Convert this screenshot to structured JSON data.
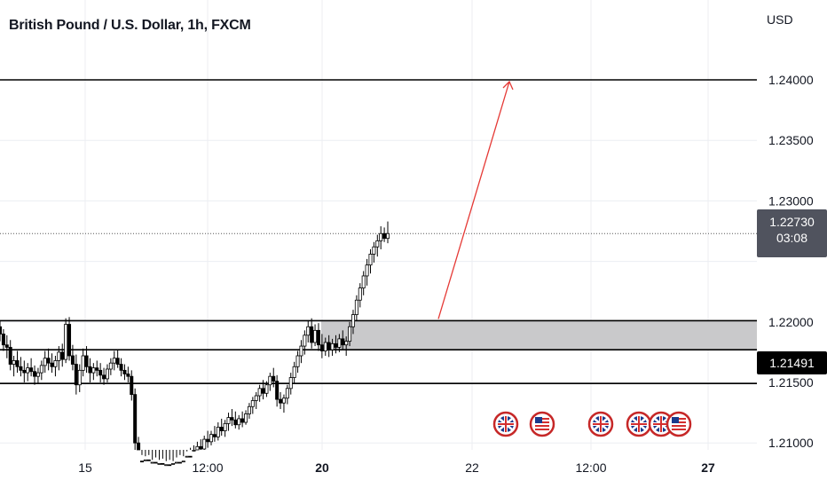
{
  "header": {
    "symbol_title": "British Pound / U.S. Dollar, 1h, FXCM",
    "currency": "USD"
  },
  "price_tags": {
    "current_price": "1.22730",
    "countdown": "03:08",
    "level_price": "1.21491"
  },
  "colors": {
    "up_candle": "#ffffff",
    "candle_outline": "#000000",
    "zone_fill": "#c9c9cb",
    "arrow": "#e53935",
    "grid": "#eceef2"
  },
  "chart_data": {
    "type": "candlestick",
    "title": "British Pound / U.S. Dollar, 1h, FXCM",
    "ylabel": "USD",
    "ylim": [
      1.2078,
      1.24437
    ],
    "y_ticks": [
      "1.21000",
      "1.21500",
      "1.22000",
      "1.23000",
      "1.23500",
      "1.24000"
    ],
    "x_ticks": [
      "15",
      "12:00",
      "20",
      "22",
      "12:00",
      "27"
    ],
    "grid": true,
    "last_price": 1.2273,
    "horizontal_levels": [
      1.24,
      1.2201,
      1.2177,
      1.21491
    ],
    "zone": {
      "from": 1.2177,
      "to": 1.2201,
      "start": "20"
    },
    "projection_arrow": {
      "from_price": 1.2201,
      "to_price": 1.24
    },
    "candles_ohlc": [
      [
        1.2196,
        1.2201,
        1.2184,
        1.219
      ],
      [
        1.219,
        1.2194,
        1.2176,
        1.2181
      ],
      [
        1.2181,
        1.2189,
        1.217,
        1.2179
      ],
      [
        1.2179,
        1.2185,
        1.216,
        1.2165
      ],
      [
        1.2165,
        1.2172,
        1.2155,
        1.2168
      ],
      [
        1.2168,
        1.2176,
        1.2158,
        1.2163
      ],
      [
        1.2163,
        1.2171,
        1.2155,
        1.216
      ],
      [
        1.216,
        1.2168,
        1.215,
        1.2158
      ],
      [
        1.2158,
        1.2166,
        1.2151,
        1.2162
      ],
      [
        1.2162,
        1.217,
        1.2155,
        1.2159
      ],
      [
        1.2159,
        1.2164,
        1.2148,
        1.2155
      ],
      [
        1.2155,
        1.2162,
        1.2149,
        1.2158
      ],
      [
        1.2158,
        1.2168,
        1.2152,
        1.2164
      ],
      [
        1.2164,
        1.2176,
        1.2158,
        1.217
      ],
      [
        1.217,
        1.2178,
        1.216,
        1.2166
      ],
      [
        1.2166,
        1.2174,
        1.2158,
        1.2163
      ],
      [
        1.2163,
        1.2172,
        1.2155,
        1.2168
      ],
      [
        1.2168,
        1.218,
        1.216,
        1.2175
      ],
      [
        1.2175,
        1.2182,
        1.2163,
        1.2169
      ],
      [
        1.2169,
        1.2203,
        1.2166,
        1.2198
      ],
      [
        1.2198,
        1.2204,
        1.2168,
        1.2172
      ],
      [
        1.2172,
        1.2181,
        1.216,
        1.2165
      ],
      [
        1.2165,
        1.2173,
        1.214,
        1.2148
      ],
      [
        1.2148,
        1.2165,
        1.2142,
        1.216
      ],
      [
        1.216,
        1.2178,
        1.2155,
        1.2172
      ],
      [
        1.2172,
        1.218,
        1.2158,
        1.2163
      ],
      [
        1.2163,
        1.217,
        1.215,
        1.2158
      ],
      [
        1.2158,
        1.2166,
        1.2152,
        1.2162
      ],
      [
        1.2162,
        1.2168,
        1.2155,
        1.216
      ],
      [
        1.216,
        1.2166,
        1.215,
        1.2156
      ],
      [
        1.2156,
        1.2162,
        1.2148,
        1.2153
      ],
      [
        1.2153,
        1.2165,
        1.215,
        1.2161
      ],
      [
        1.2161,
        1.217,
        1.2156,
        1.2166
      ],
      [
        1.2166,
        1.2176,
        1.216,
        1.217
      ],
      [
        1.217,
        1.2177,
        1.2162,
        1.2165
      ],
      [
        1.2165,
        1.217,
        1.2155,
        1.216
      ],
      [
        1.216,
        1.2165,
        1.2152,
        1.2157
      ],
      [
        1.2157,
        1.2163,
        1.215,
        1.2155
      ],
      [
        1.2155,
        1.216,
        1.2135,
        1.214
      ],
      [
        1.214,
        1.2145,
        1.209,
        1.21
      ],
      [
        1.21,
        1.2105,
        1.2078,
        1.2085
      ],
      [
        1.2085,
        1.209,
        1.2078,
        1.2082
      ],
      [
        1.2082,
        1.2089,
        1.2078,
        1.2086
      ],
      [
        1.2086,
        1.209,
        1.2078,
        1.208
      ],
      [
        1.208,
        1.2086,
        1.2078,
        1.2084
      ],
      [
        1.2084,
        1.2088,
        1.2078,
        1.2081
      ],
      [
        1.2081,
        1.2086,
        1.2078,
        1.2083
      ],
      [
        1.2083,
        1.2087,
        1.2078,
        1.208
      ],
      [
        1.208,
        1.2085,
        1.2078,
        1.2082
      ],
      [
        1.2082,
        1.2086,
        1.2078,
        1.2081
      ],
      [
        1.2081,
        1.2085,
        1.2078,
        1.2083
      ],
      [
        1.2083,
        1.2088,
        1.2078,
        1.2084
      ],
      [
        1.2084,
        1.209,
        1.2078,
        1.2082
      ],
      [
        1.2082,
        1.2089,
        1.2078,
        1.2085
      ],
      [
        1.2085,
        1.2093,
        1.208,
        1.2089
      ],
      [
        1.2089,
        1.2096,
        1.2082,
        1.2087
      ],
      [
        1.2087,
        1.2098,
        1.2084,
        1.2094
      ],
      [
        1.2094,
        1.2101,
        1.2088,
        1.2097
      ],
      [
        1.2097,
        1.2103,
        1.209,
        1.2095
      ],
      [
        1.2095,
        1.2106,
        1.2093,
        1.2103
      ],
      [
        1.2103,
        1.211,
        1.2096,
        1.2101
      ],
      [
        1.2101,
        1.211,
        1.2098,
        1.2107
      ],
      [
        1.2107,
        1.2114,
        1.2101,
        1.2105
      ],
      [
        1.2105,
        1.2117,
        1.2102,
        1.2113
      ],
      [
        1.2113,
        1.212,
        1.2106,
        1.211
      ],
      [
        1.211,
        1.2119,
        1.2105,
        1.2116
      ],
      [
        1.2116,
        1.2125,
        1.211,
        1.2121
      ],
      [
        1.2121,
        1.2128,
        1.2114,
        1.2119
      ],
      [
        1.2119,
        1.2126,
        1.2112,
        1.2115
      ],
      [
        1.2115,
        1.2123,
        1.2111,
        1.212
      ],
      [
        1.212,
        1.2126,
        1.2113,
        1.2117
      ],
      [
        1.2117,
        1.2127,
        1.2115,
        1.2124
      ],
      [
        1.2124,
        1.2133,
        1.212,
        1.213
      ],
      [
        1.213,
        1.2138,
        1.2124,
        1.2135
      ],
      [
        1.2135,
        1.2142,
        1.2128,
        1.2139
      ],
      [
        1.2139,
        1.2148,
        1.2134,
        1.2145
      ],
      [
        1.2145,
        1.2152,
        1.2136,
        1.2141
      ],
      [
        1.2141,
        1.2151,
        1.2138,
        1.2148
      ],
      [
        1.2148,
        1.2158,
        1.2143,
        1.2155
      ],
      [
        1.2155,
        1.2162,
        1.2146,
        1.2151
      ],
      [
        1.2151,
        1.2156,
        1.213,
        1.2136
      ],
      [
        1.2136,
        1.2142,
        1.2128,
        1.2133
      ],
      [
        1.2133,
        1.214,
        1.2125,
        1.2137
      ],
      [
        1.2137,
        1.2148,
        1.2132,
        1.2145
      ],
      [
        1.2145,
        1.2158,
        1.214,
        1.2154
      ],
      [
        1.2154,
        1.2167,
        1.2149,
        1.2163
      ],
      [
        1.2163,
        1.2176,
        1.2158,
        1.2172
      ],
      [
        1.2172,
        1.2185,
        1.2166,
        1.218
      ],
      [
        1.218,
        1.2193,
        1.2173,
        1.2189
      ],
      [
        1.2189,
        1.2201,
        1.2183,
        1.2196
      ],
      [
        1.2196,
        1.2203,
        1.2178,
        1.2183
      ],
      [
        1.2183,
        1.2198,
        1.218,
        1.2193
      ],
      [
        1.2193,
        1.2199,
        1.2176,
        1.2181
      ],
      [
        1.2181,
        1.219,
        1.217,
        1.2176
      ],
      [
        1.2176,
        1.2187,
        1.2172,
        1.2183
      ],
      [
        1.2183,
        1.2189,
        1.2171,
        1.2177
      ],
      [
        1.2177,
        1.2186,
        1.2172,
        1.2182
      ],
      [
        1.2182,
        1.2189,
        1.2174,
        1.2179
      ],
      [
        1.2179,
        1.219,
        1.2175,
        1.2186
      ],
      [
        1.2186,
        1.2193,
        1.2177,
        1.2181
      ],
      [
        1.2181,
        1.2188,
        1.2172,
        1.2184
      ],
      [
        1.2184,
        1.22,
        1.218,
        1.2196
      ],
      [
        1.2196,
        1.221,
        1.219,
        1.2206
      ],
      [
        1.2206,
        1.2222,
        1.2201,
        1.2218
      ],
      [
        1.2218,
        1.2232,
        1.2212,
        1.2228
      ],
      [
        1.2228,
        1.2242,
        1.2222,
        1.2238
      ],
      [
        1.2238,
        1.2252,
        1.223,
        1.2247
      ],
      [
        1.2247,
        1.226,
        1.224,
        1.2256
      ],
      [
        1.2256,
        1.2266,
        1.2249,
        1.2262
      ],
      [
        1.2262,
        1.2272,
        1.2254,
        1.2267
      ],
      [
        1.2267,
        1.2279,
        1.226,
        1.2273
      ],
      [
        1.2273,
        1.2278,
        1.2266,
        1.2269
      ],
      [
        1.2269,
        1.2283,
        1.2265,
        1.2273
      ]
    ],
    "event_markers": [
      "GBP",
      "USD",
      "GBP",
      "GBP",
      "GBP",
      "USD"
    ]
  }
}
